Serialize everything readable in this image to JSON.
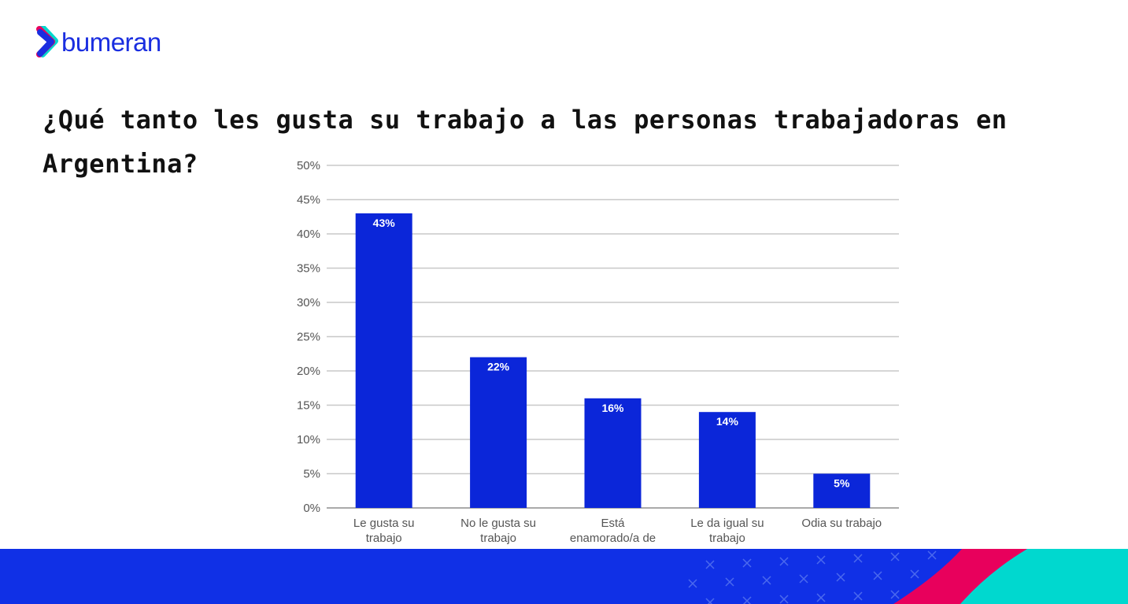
{
  "brand": {
    "name": "bumeran",
    "logo_colors": [
      "#1a2ee0",
      "#e8005c",
      "#00d8d0"
    ]
  },
  "title": "¿Qué tanto les gusta su trabajo a las personas trabajadoras en Argentina?",
  "colors": {
    "bar": "#0b26d9",
    "band_blue": "#1030e6",
    "band_pink": "#e8005c",
    "band_cyan": "#00d8cf"
  },
  "chart_data": {
    "type": "bar",
    "categories": [
      [
        "Le gusta su",
        "trabajo"
      ],
      [
        "No le gusta su",
        "trabajo"
      ],
      [
        "Está",
        "enamorado/a de"
      ],
      [
        "Le da igual su",
        "trabajo"
      ],
      [
        "Odia su trabajo"
      ]
    ],
    "values": [
      43,
      22,
      16,
      14,
      5
    ],
    "data_labels": [
      "43%",
      "22%",
      "16%",
      "14%",
      "5%"
    ],
    "ylim": [
      0,
      50
    ],
    "yticks": [
      "0%",
      "5%",
      "10%",
      "15%",
      "20%",
      "25%",
      "30%",
      "35%",
      "40%",
      "45%",
      "50%"
    ],
    "grid": true,
    "legend": "none"
  }
}
